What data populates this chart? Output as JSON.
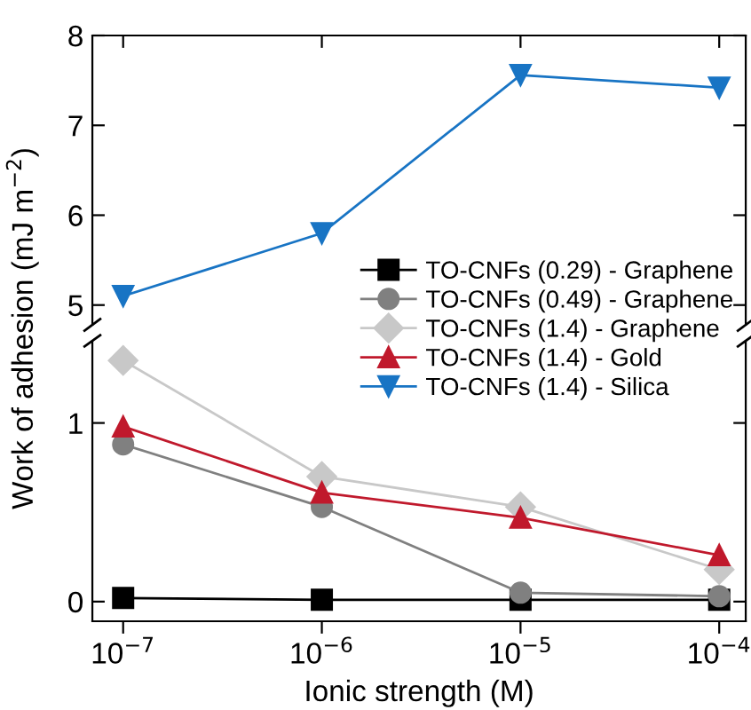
{
  "chart_data": [
    {
      "type": "line",
      "x": [
        1e-07,
        1e-06,
        1e-05,
        0.0001
      ],
      "log": "x",
      "xlim": [
        7e-08,
        0.000136
      ],
      "ylim": [
        4.78,
        8
      ],
      "yticks": [
        5,
        6,
        7,
        8
      ],
      "tick_labels": "y",
      "grid": false,
      "series": [
        {
          "name": "TO-CNFs (1.4) - Silica",
          "color": "#1874c4",
          "marker": "triangle_down",
          "values": [
            5.1,
            5.8,
            7.56,
            7.42
          ]
        }
      ]
    },
    {
      "type": "line",
      "x": [
        1e-07,
        1e-06,
        1e-05,
        0.0001
      ],
      "log": "x",
      "xlim": [
        7e-08,
        0.000136
      ],
      "xticks": [
        {
          "value": 1e-07,
          "label": "10$^{−7}$"
        },
        {
          "value": 1e-06,
          "label": "10$^{−6}$"
        },
        {
          "value": 1e-05,
          "label": "10$^{−5}$"
        },
        {
          "value": 0.0001,
          "label": "10$^{−4}$"
        }
      ],
      "ylim": [
        -0.11,
        1.46
      ],
      "yticks": [
        0,
        1
      ],
      "grid": false,
      "legend": "top right",
      "xlabel": "Ionic strength (M)",
      "ylabel": "Work of adhesion (mJ m$^{−2}$)",
      "series": [
        {
          "name": "TO-CNFs (0.29) - Graphene",
          "color": "#000000",
          "marker": "square",
          "values": [
            0.02,
            0.01,
            0.01,
            0.01
          ]
        },
        {
          "name": "TO-CNFs (0.49) - Graphene",
          "color": "#808080",
          "marker": "circle",
          "values": [
            0.88,
            0.53,
            0.05,
            0.03
          ]
        },
        {
          "name": "TO-CNFs (1.4) - Graphene",
          "color": "#c8c8c8",
          "marker": "diamond",
          "values": [
            1.35,
            0.7,
            0.53,
            0.18
          ]
        },
        {
          "name": "TO-CNFs (1.4) - Gold",
          "color": "#c0192c",
          "marker": "triangle",
          "values": [
            0.98,
            0.61,
            0.47,
            0.26
          ]
        }
      ]
    }
  ]
}
